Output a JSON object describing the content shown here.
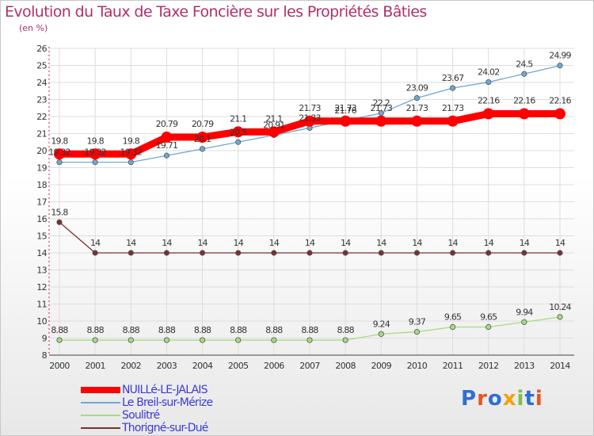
{
  "chart_data": {
    "type": "line",
    "title": "Evolution du Taux de Taxe Foncière sur les Propriétés Bâties",
    "subtitle": "(en %)",
    "x": [
      2000,
      2001,
      2002,
      2003,
      2004,
      2005,
      2006,
      2007,
      2008,
      2009,
      2010,
      2011,
      2012,
      2013,
      2014
    ],
    "ylim": [
      8,
      26
    ],
    "yticks": [
      8,
      9,
      10,
      11,
      12,
      13,
      14,
      15,
      16,
      17,
      18,
      19,
      20,
      21,
      22,
      23,
      24,
      25,
      26
    ],
    "grid": true,
    "legend_position": "bottom-left",
    "series": [
      {
        "name": "NUILLé-LE-JALAIS",
        "color": "#ff0000",
        "values": [
          19.8,
          19.8,
          19.8,
          20.79,
          20.79,
          21.1,
          21.1,
          21.73,
          21.73,
          21.73,
          21.73,
          21.73,
          22.16,
          22.16,
          22.16
        ],
        "labels": [
          "19.8",
          "19.8",
          "19.8",
          "20.79",
          "20.79",
          "21.1",
          "21.1",
          "21.73",
          "21.73",
          "21.73",
          "21.73",
          "21.73",
          "22.16",
          "22.16",
          "22.16"
        ]
      },
      {
        "name": "Le Breil-sur-Mérize",
        "color": "#6fa7d4",
        "values": [
          19.32,
          19.32,
          19.32,
          19.71,
          20.1,
          20.5,
          20.91,
          21.33,
          21.76,
          22.2,
          23.09,
          23.67,
          24.02,
          24.5,
          24.99
        ],
        "labels": [
          "19.32",
          "19.32",
          "19.32",
          "19.71",
          "20.1",
          "20.5",
          "20.91",
          "21.33",
          "21.76",
          "22.2",
          "23.09",
          "23.67",
          "24.02",
          "24.5",
          "24.99"
        ]
      },
      {
        "name": "Soulitré",
        "color": "#a6dc7e",
        "values": [
          8.88,
          8.88,
          8.88,
          8.88,
          8.88,
          8.88,
          8.88,
          8.88,
          8.88,
          9.24,
          9.37,
          9.65,
          9.65,
          9.94,
          10.24
        ],
        "labels": [
          "8.88",
          "8.88",
          "8.88",
          "8.88",
          "8.88",
          "8.88",
          "8.88",
          "8.88",
          "8.88",
          "9.24",
          "9.37",
          "9.65",
          "9.65",
          "9.94",
          "10.24"
        ]
      },
      {
        "name": "Thorigné-sur-Dué",
        "color": "#7a3030",
        "values": [
          15.8,
          14,
          14,
          14,
          14,
          14,
          14,
          14,
          14,
          14,
          14,
          14,
          14,
          14,
          14
        ],
        "labels": [
          "15.8",
          "14",
          "14",
          "14",
          "14",
          "14",
          "14",
          "14",
          "14",
          "14",
          "14",
          "14",
          "14",
          "14",
          "14"
        ]
      }
    ]
  },
  "logo": {
    "text": "Proxiti",
    "colors": [
      "#2f6fd0",
      "#e8541e",
      "#2f6fd0",
      "#f2a20a",
      "#7cc04a",
      "#2f6fd0",
      "#e8541e"
    ]
  }
}
